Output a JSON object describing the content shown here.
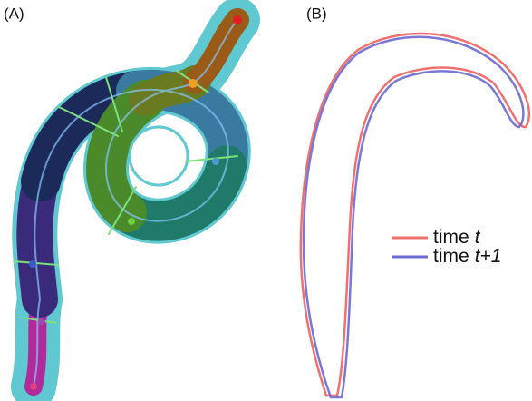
{
  "panels": [
    {
      "label": "(A)"
    },
    {
      "label": "(B)"
    }
  ],
  "legend": [
    {
      "text": "time",
      "var": "t",
      "color": "#f07070"
    },
    {
      "text": "time",
      "var": "t+1",
      "color": "#6a6ad0"
    }
  ]
}
